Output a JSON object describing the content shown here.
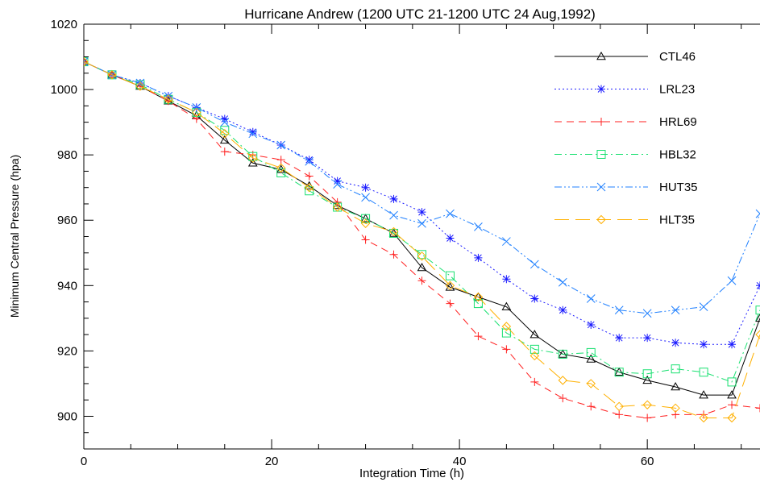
{
  "chart_data": {
    "type": "line",
    "title": "Hurricane Andrew (1200 UTC 21-1200 UTC 24 Aug,1992)",
    "xlabel": "Integration Time (h)",
    "ylabel": "Minimum Central Pressure (hpa)",
    "xlim": [
      0,
      72
    ],
    "ylim": [
      890,
      1020
    ],
    "x_ticks": [
      "0",
      "20",
      "40",
      "60"
    ],
    "y_ticks": [
      "900",
      "920",
      "940",
      "960",
      "980",
      "1000",
      "1020"
    ],
    "x_tick_values": [
      0,
      20,
      40,
      60
    ],
    "y_tick_values": [
      900,
      920,
      940,
      960,
      980,
      1000,
      1020
    ],
    "legend_position": "top-right",
    "x": [
      0,
      3,
      6,
      9,
      12,
      15,
      18,
      21,
      24,
      27,
      30,
      33,
      36,
      39,
      42,
      45,
      48,
      51,
      54,
      57,
      60,
      63,
      66,
      69,
      72
    ],
    "series": [
      {
        "name": "CTL46",
        "color": "#000000",
        "dash": "solid",
        "marker": "triangle",
        "values": [
          1008.5,
          1004.5,
          1001,
          996.5,
          992,
          984.5,
          977.5,
          975.5,
          970.5,
          964.5,
          960.5,
          956,
          945.5,
          939.5,
          936.5,
          933.5,
          925,
          919,
          917.5,
          913.5,
          911,
          909,
          906.5,
          906.5,
          930
        ]
      },
      {
        "name": "LRL23",
        "color": "#1a1aff",
        "dash": "dotted",
        "marker": "asterisk",
        "values": [
          1008.5,
          1004.5,
          1002,
          998,
          994.5,
          991,
          987,
          983,
          978.5,
          972,
          970,
          966.5,
          962.5,
          954.5,
          948.5,
          942,
          936,
          932.5,
          928,
          924,
          924,
          922.5,
          922,
          922,
          940
        ]
      },
      {
        "name": "HRL69",
        "color": "#ff2020",
        "dash": "dashed",
        "marker": "plus",
        "values": [
          1008.5,
          1004.5,
          1001,
          996.5,
          991,
          981,
          980,
          978.5,
          973.5,
          965.5,
          954,
          949.5,
          941.5,
          934.5,
          924.5,
          920.5,
          910.5,
          905.5,
          903,
          900.5,
          899.5,
          900.5,
          900.5,
          903.5,
          902.5
        ]
      },
      {
        "name": "HBL32",
        "color": "#18e070",
        "dash": "dashdot",
        "marker": "square",
        "values": [
          1008.5,
          1004.5,
          1001.5,
          997,
          993,
          987.5,
          979.5,
          974.5,
          969,
          964,
          960.5,
          956,
          949.5,
          943,
          934.5,
          925.5,
          920.5,
          919,
          919.5,
          913.5,
          913,
          914.5,
          913.5,
          910.5,
          932.5
        ]
      },
      {
        "name": "HUT35",
        "color": "#2080ff",
        "dash": "dashdotdot",
        "marker": "cross",
        "values": [
          1008.5,
          1004.5,
          1002,
          998,
          994.5,
          990,
          986.5,
          983,
          978,
          971,
          967,
          961.5,
          959,
          962,
          958,
          953.5,
          946.5,
          941,
          936,
          932.5,
          931.5,
          932.5,
          933.5,
          941.5,
          962
        ]
      },
      {
        "name": "HLT35",
        "color": "#ffb000",
        "dash": "longdash",
        "marker": "diamond",
        "values": [
          1008.5,
          1004.5,
          1001,
          997,
          993,
          986.5,
          979,
          976,
          970,
          964,
          959,
          956.5,
          949,
          940,
          936.5,
          927.5,
          918.5,
          911,
          910,
          903,
          903.5,
          902.5,
          899.5,
          899.5,
          925
        ]
      }
    ]
  }
}
